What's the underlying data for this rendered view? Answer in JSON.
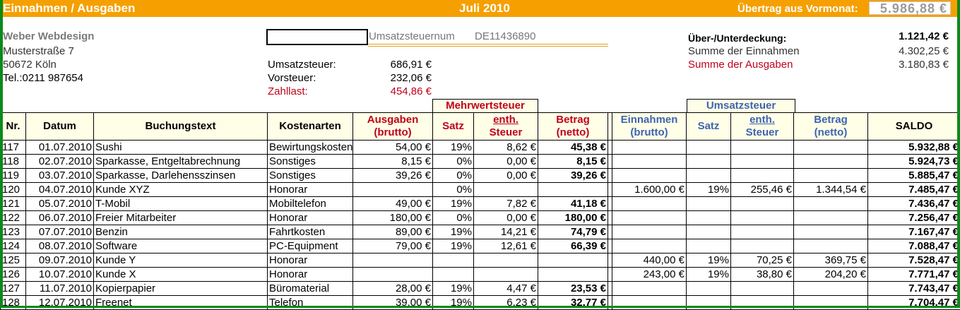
{
  "header": {
    "title": "Einnahmen / Ausgaben",
    "month": "Juli 2010",
    "carry_label": "Übertrag aus Vormonat:",
    "carry_value": "5.986,88 €"
  },
  "company": {
    "name": "Weber Webdesign",
    "street": "Musterstraße 7",
    "city": "50672 Köln",
    "phone": "Tel.:0211 987654"
  },
  "tax_id": {
    "label": "Umsatzsteuernum",
    "value": "DE11436890"
  },
  "tax_summary": {
    "vat_label": "Umsatzsteuer:",
    "vat_value": "686,91 €",
    "input_label": "Vorsteuer:",
    "input_value": "232,06 €",
    "due_label": "Zahllast:",
    "due_value": "454,86 €"
  },
  "balance": {
    "diff_label": "Über-/Unterdeckung:",
    "diff_value": "1.121,42 €",
    "income_label": "Summe der Einnahmen",
    "income_value": "4.302,25 €",
    "expense_label": "Summe der Ausgaben",
    "expense_value": "3.180,83 €"
  },
  "groups": {
    "vat_group": "Mehrwertsteuer",
    "income_vat_group": "Umsatzsteuer"
  },
  "columns": {
    "nr": "Nr.",
    "date": "Datum",
    "text": "Buchungstext",
    "category": "Kostenarten",
    "exp_gross_1": "Ausgaben",
    "exp_gross_2": "(brutto)",
    "exp_rate": "Satz",
    "exp_tax_1": "enth.",
    "exp_tax_2": "Steuer",
    "exp_net_1": "Betrag",
    "exp_net_2": "(netto)",
    "inc_gross_1": "Einnahmen",
    "inc_gross_2": "(brutto)",
    "inc_rate": "Satz",
    "inc_tax_1": "enth.",
    "inc_tax_2": "Steuer",
    "inc_net_1": "Betrag",
    "inc_net_2": "(netto)",
    "saldo": "SALDO"
  },
  "rows": [
    {
      "nr": "117",
      "date": "01.07.2010",
      "text": "Sushi",
      "category": "Bewirtungskosten",
      "exp_gross": "54,00 €",
      "exp_rate": "19%",
      "exp_tax": "8,62 €",
      "exp_net": "45,38 €",
      "inc_gross": "",
      "inc_rate": "",
      "inc_tax": "",
      "inc_net": "",
      "saldo": "5.932,88 €"
    },
    {
      "nr": "118",
      "date": "02.07.2010",
      "text": "Sparkasse, Entgeltabrechnung",
      "category": "Sonstiges",
      "exp_gross": "8,15 €",
      "exp_rate": "0%",
      "exp_tax": "0,00 €",
      "exp_net": "8,15 €",
      "inc_gross": "",
      "inc_rate": "",
      "inc_tax": "",
      "inc_net": "",
      "saldo": "5.924,73 €"
    },
    {
      "nr": "119",
      "date": "03.07.2010",
      "text": "Sparkasse, Darlehensszinsen",
      "category": "Sonstiges",
      "exp_gross": "39,26 €",
      "exp_rate": "0%",
      "exp_tax": "0,00 €",
      "exp_net": "39,26 €",
      "inc_gross": "",
      "inc_rate": "",
      "inc_tax": "",
      "inc_net": "",
      "saldo": "5.885,47 €"
    },
    {
      "nr": "120",
      "date": "04.07.2010",
      "text": "Kunde XYZ",
      "category": "Honorar",
      "exp_gross": "",
      "exp_rate": "0%",
      "exp_tax": "",
      "exp_net": "",
      "inc_gross": "1.600,00 €",
      "inc_rate": "19%",
      "inc_tax": "255,46 €",
      "inc_net": "1.344,54 €",
      "saldo": "7.485,47 €"
    },
    {
      "nr": "121",
      "date": "05.07.2010",
      "text": "T-Mobil",
      "category": "Mobiltelefon",
      "exp_gross": "49,00 €",
      "exp_rate": "19%",
      "exp_tax": "7,82 €",
      "exp_net": "41,18 €",
      "inc_gross": "",
      "inc_rate": "",
      "inc_tax": "",
      "inc_net": "",
      "saldo": "7.436,47 €"
    },
    {
      "nr": "122",
      "date": "06.07.2010",
      "text": "Freier Mitarbeiter",
      "category": "Honorar",
      "exp_gross": "180,00 €",
      "exp_rate": "0%",
      "exp_tax": "0,00 €",
      "exp_net": "180,00 €",
      "inc_gross": "",
      "inc_rate": "",
      "inc_tax": "",
      "inc_net": "",
      "saldo": "7.256,47 €"
    },
    {
      "nr": "123",
      "date": "07.07.2010",
      "text": "Benzin",
      "category": "Fahrtkosten",
      "exp_gross": "89,00 €",
      "exp_rate": "19%",
      "exp_tax": "14,21 €",
      "exp_net": "74,79 €",
      "inc_gross": "",
      "inc_rate": "",
      "inc_tax": "",
      "inc_net": "",
      "saldo": "7.167,47 €"
    },
    {
      "nr": "124",
      "date": "08.07.2010",
      "text": "Software",
      "category": "PC-Equipment",
      "exp_gross": "79,00 €",
      "exp_rate": "19%",
      "exp_tax": "12,61 €",
      "exp_net": "66,39 €",
      "inc_gross": "",
      "inc_rate": "",
      "inc_tax": "",
      "inc_net": "",
      "saldo": "7.088,47 €"
    },
    {
      "nr": "125",
      "date": "09.07.2010",
      "text": "Kunde Y",
      "category": "Honorar",
      "exp_gross": "",
      "exp_rate": "",
      "exp_tax": "",
      "exp_net": "",
      "inc_gross": "440,00 €",
      "inc_rate": "19%",
      "inc_tax": "70,25 €",
      "inc_net": "369,75 €",
      "saldo": "7.528,47 €"
    },
    {
      "nr": "126",
      "date": "10.07.2010",
      "text": "Kunde X",
      "category": "Honorar",
      "exp_gross": "",
      "exp_rate": "",
      "exp_tax": "",
      "exp_net": "",
      "inc_gross": "243,00 €",
      "inc_rate": "19%",
      "inc_tax": "38,80 €",
      "inc_net": "204,20 €",
      "saldo": "7.771,47 €"
    },
    {
      "nr": "127",
      "date": "11.07.2010",
      "text": "Kopierpapier",
      "category": "Büromaterial",
      "exp_gross": "28,00 €",
      "exp_rate": "19%",
      "exp_tax": "4,47 €",
      "exp_net": "23,53 €",
      "inc_gross": "",
      "inc_rate": "",
      "inc_tax": "",
      "inc_net": "",
      "saldo": "7.743,47 €"
    },
    {
      "nr": "128",
      "date": "12.07.2010",
      "text": "Freenet",
      "category": "Telefon",
      "exp_gross": "39,00 €",
      "exp_rate": "19%",
      "exp_tax": "6,23 €",
      "exp_net": "32,77 €",
      "inc_gross": "",
      "inc_rate": "",
      "inc_tax": "",
      "inc_net": "",
      "saldo": "7.704,47 €"
    }
  ],
  "colors": {
    "header_bar": "#f5a000",
    "expense_red": "#c0001a",
    "income_blue": "#3e64b0",
    "frame_green": "#0a8a1a"
  }
}
